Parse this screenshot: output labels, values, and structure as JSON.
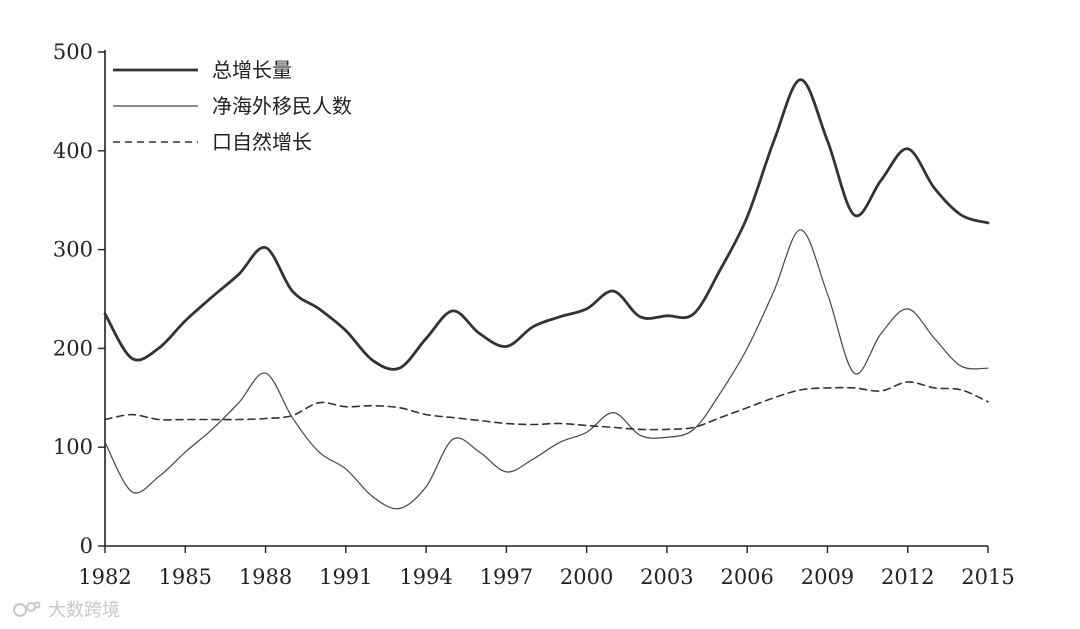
{
  "chart_data": {
    "type": "line",
    "x": [
      1982,
      1983,
      1984,
      1985,
      1986,
      1987,
      1988,
      1989,
      1990,
      1991,
      1992,
      1993,
      1994,
      1995,
      1996,
      1997,
      1998,
      1999,
      2000,
      2001,
      2002,
      2003,
      2004,
      2005,
      2006,
      2007,
      2008,
      2009,
      2010,
      2011,
      2012,
      2013,
      2014,
      2015
    ],
    "xticks": [
      1982,
      1985,
      1988,
      1991,
      1994,
      1997,
      2000,
      2003,
      2006,
      2009,
      2012,
      2015
    ],
    "yticks": [
      0,
      100,
      200,
      300,
      400,
      500
    ],
    "xlim": [
      1982,
      2015
    ],
    "ylim": [
      0,
      500
    ],
    "series": [
      {
        "name": "总增长量",
        "style": "thick",
        "values": [
          235,
          190,
          200,
          228,
          252,
          275,
          302,
          258,
          240,
          218,
          188,
          180,
          210,
          238,
          215,
          202,
          222,
          232,
          240,
          258,
          232,
          233,
          235,
          280,
          333,
          410,
          472,
          410,
          335,
          370,
          402,
          362,
          335,
          327
        ]
      },
      {
        "name": "净海外移民人数",
        "style": "thin",
        "values": [
          105,
          55,
          70,
          95,
          118,
          145,
          175,
          130,
          95,
          78,
          50,
          38,
          60,
          108,
          95,
          75,
          88,
          105,
          115,
          135,
          112,
          110,
          118,
          155,
          200,
          258,
          320,
          255,
          175,
          215,
          240,
          210,
          182,
          180
        ]
      },
      {
        "name": "口自然增长",
        "style": "dashed",
        "values": [
          128,
          133,
          128,
          128,
          128,
          128,
          129,
          132,
          145,
          141,
          142,
          140,
          133,
          130,
          127,
          124,
          123,
          124,
          122,
          120,
          118,
          118,
          120,
          130,
          140,
          150,
          158,
          160,
          160,
          157,
          166,
          160,
          158,
          146
        ]
      }
    ],
    "legend_position": "top-left",
    "grid": false
  },
  "watermark": {
    "text": "大数跨境"
  }
}
